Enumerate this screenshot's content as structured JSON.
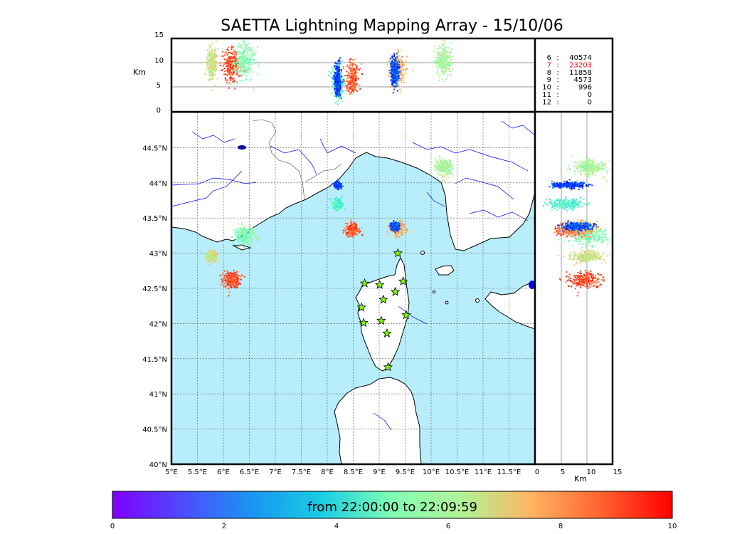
{
  "title": "SAETTA Lightning Mapping Array - 15/10/06",
  "top_panel": {
    "ylabel": "Km",
    "yticks": [
      "0",
      "5",
      "10",
      "15"
    ]
  },
  "right_panel": {
    "xlabel": "Km",
    "xticks": [
      "0",
      "5",
      "10",
      "15"
    ]
  },
  "map": {
    "lon_ticks": [
      "5°E",
      "5.5°E",
      "6°E",
      "6.5°E",
      "7°E",
      "7.5°E",
      "8°E",
      "8.5°E",
      "9°E",
      "9.5°E",
      "10°E",
      "10.5°E",
      "11°E",
      "11.5°E"
    ],
    "lat_ticks": [
      "40°N",
      "40.5°N",
      "41°N",
      "41.5°N",
      "42°N",
      "42.5°N",
      "43°N",
      "43.5°N",
      "44°N",
      "44.5°N"
    ],
    "sea_color": "#b8eefb",
    "land_color": "#ffffff",
    "station_icon": "star-icon",
    "station_color": "#80ff00",
    "stations": [
      {
        "lon": 9.36,
        "lat": 43.0
      },
      {
        "lon": 8.72,
        "lat": 42.57
      },
      {
        "lon": 9.01,
        "lat": 42.55
      },
      {
        "lon": 9.46,
        "lat": 42.6
      },
      {
        "lon": 9.08,
        "lat": 42.34
      },
      {
        "lon": 9.31,
        "lat": 42.45
      },
      {
        "lon": 8.66,
        "lat": 42.23
      },
      {
        "lon": 9.52,
        "lat": 42.12
      },
      {
        "lon": 8.7,
        "lat": 42.01
      },
      {
        "lon": 9.04,
        "lat": 42.04
      },
      {
        "lon": 9.15,
        "lat": 41.86
      },
      {
        "lon": 9.17,
        "lat": 41.38
      }
    ]
  },
  "station_counts": [
    {
      "stations": "6",
      "count": "40574",
      "color": "#000000"
    },
    {
      "stations": "7",
      "count": "23203",
      "color": "#ff0000"
    },
    {
      "stations": "8",
      "count": "11858",
      "color": "#000000"
    },
    {
      "stations": "9",
      "count": "4573",
      "color": "#000000"
    },
    {
      "stations": "10",
      "count": "996",
      "color": "#000000"
    },
    {
      "stations": "11",
      "count": "0",
      "color": "#000000"
    },
    {
      "stations": "12",
      "count": "0",
      "color": "#000000"
    }
  ],
  "colorbar": {
    "label": "from 22:00:00 to 22:09:59",
    "ticks": [
      "0",
      "2",
      "4",
      "6",
      "8",
      "10"
    ],
    "colormap": "rainbow"
  },
  "chart_data": {
    "type": "scatter",
    "description_units": "lightning source clusters: lon/lat in degrees, altitude in km, time in minutes after 22:00:00",
    "xlim_lon": [
      5,
      12
    ],
    "ylim_lat": [
      40,
      45
    ],
    "alt_range_km": [
      0,
      15
    ],
    "time_range_min": [
      0,
      10
    ],
    "clusters": [
      {
        "lon": 5.78,
        "lat": 42.95,
        "alt": 10.0,
        "time": 6.5,
        "spread": 0.05
      },
      {
        "lon": 6.15,
        "lat": 42.62,
        "alt": 9.5,
        "time": 9.0,
        "spread": 0.08
      },
      {
        "lon": 6.4,
        "lat": 43.25,
        "alt": 10.5,
        "time": 5.0,
        "spread": 0.1
      },
      {
        "lon": 8.2,
        "lat": 43.7,
        "alt": 6.0,
        "time": 4.2,
        "spread": 0.05
      },
      {
        "lon": 8.2,
        "lat": 43.97,
        "alt": 6.5,
        "time": 0.8,
        "spread": 0.03
      },
      {
        "lon": 8.48,
        "lat": 43.33,
        "alt": 7.0,
        "time": 8.8,
        "spread": 0.06
      },
      {
        "lon": 9.35,
        "lat": 43.35,
        "alt": 8.5,
        "time": 7.5,
        "spread": 0.07
      },
      {
        "lon": 9.3,
        "lat": 43.38,
        "alt": 8.0,
        "time": 1.0,
        "spread": 0.04
      },
      {
        "lon": 10.25,
        "lat": 44.22,
        "alt": 10.5,
        "time": 5.8,
        "spread": 0.08
      }
    ]
  }
}
